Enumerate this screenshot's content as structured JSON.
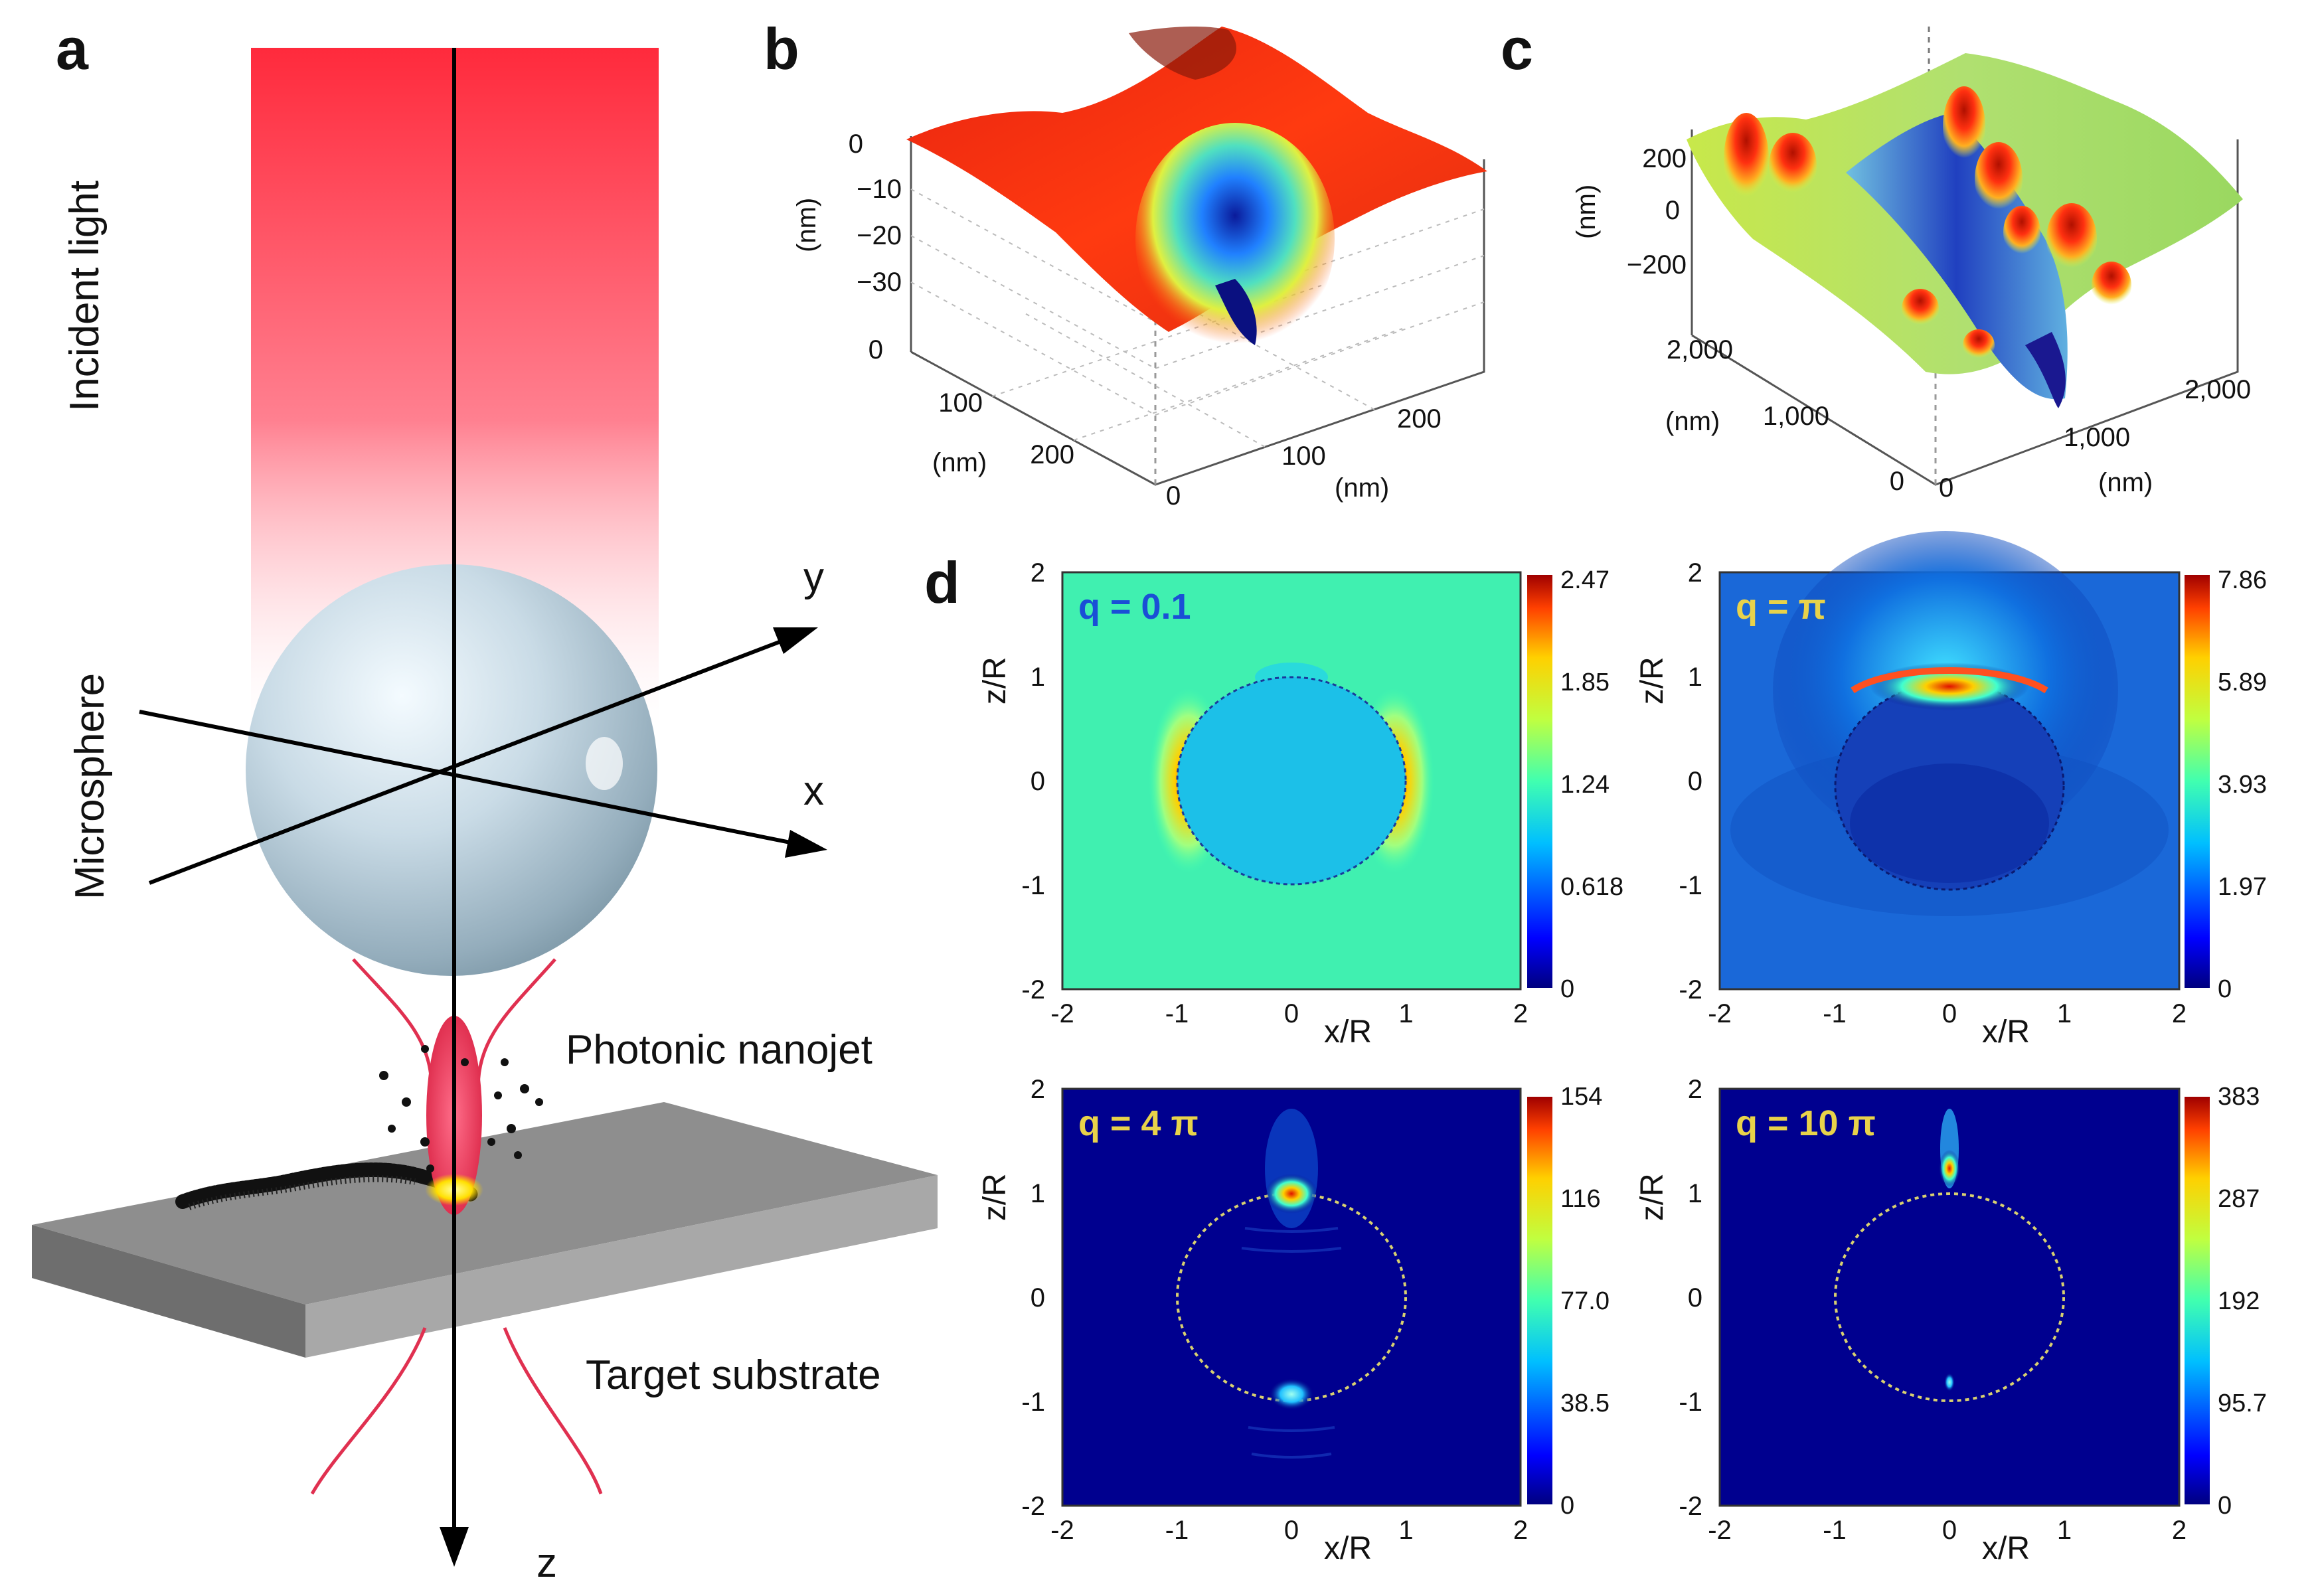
{
  "panels": {
    "a": {
      "letter": "a",
      "incident_light": "Incident light",
      "microsphere": "Microsphere",
      "photonic_nanojet": "Photonic nanojet",
      "target_substrate": "Target substrate",
      "axis_x": "x",
      "axis_y": "y",
      "axis_z": "z"
    },
    "b": {
      "letter": "b",
      "z_unit": "(nm)",
      "z_ticks": [
        "0",
        "−10",
        "−20",
        "−30"
      ],
      "left_ticks": [
        "0",
        "100",
        "200"
      ],
      "left_unit": "(nm)",
      "right_ticks": [
        "0",
        "100",
        "200"
      ],
      "right_unit": "(nm)"
    },
    "c": {
      "letter": "c",
      "z_unit": "(nm)",
      "z_ticks": [
        "200",
        "0",
        "−200"
      ],
      "left_ticks": [
        "0",
        "1,000",
        "2,000"
      ],
      "left_unit": "(nm)",
      "right_ticks": [
        "0",
        "1,000",
        "2,000"
      ],
      "right_unit": "(nm)"
    },
    "d": {
      "letter": "d",
      "xlabel": "x/R",
      "ylabel": "z/R",
      "x_ticks": [
        "-2",
        "-1",
        "0",
        "1",
        "2"
      ],
      "y_ticks": [
        "2",
        "1",
        "0",
        "-1",
        "-2"
      ],
      "maps": [
        {
          "q": "q = 0.1",
          "q_color": "#1a4fd6",
          "colorbar": [
            "2.47",
            "1.85",
            "1.24",
            "0.618",
            "0"
          ]
        },
        {
          "q": "q = π",
          "q_color": "#e8d24a",
          "colorbar": [
            "7.86",
            "5.89",
            "3.93",
            "1.97",
            "0"
          ]
        },
        {
          "q": "q = 4 π",
          "q_color": "#e8d24a",
          "colorbar": [
            "154",
            "116",
            "77.0",
            "38.5",
            "0"
          ]
        },
        {
          "q": "q = 10 π",
          "q_color": "#e8d24a",
          "colorbar": [
            "383",
            "287",
            "192",
            "95.7",
            "0"
          ]
        }
      ]
    }
  },
  "colors": {
    "beam_red": "#ff2a3c",
    "jet_red": "#e83a5a",
    "substrate": "#8c8c8c",
    "jet_colormap": [
      "#00007f",
      "#0000ff",
      "#00bfff",
      "#40ffb0",
      "#c0ff40",
      "#ffd000",
      "#ff4000",
      "#9f0000"
    ]
  }
}
